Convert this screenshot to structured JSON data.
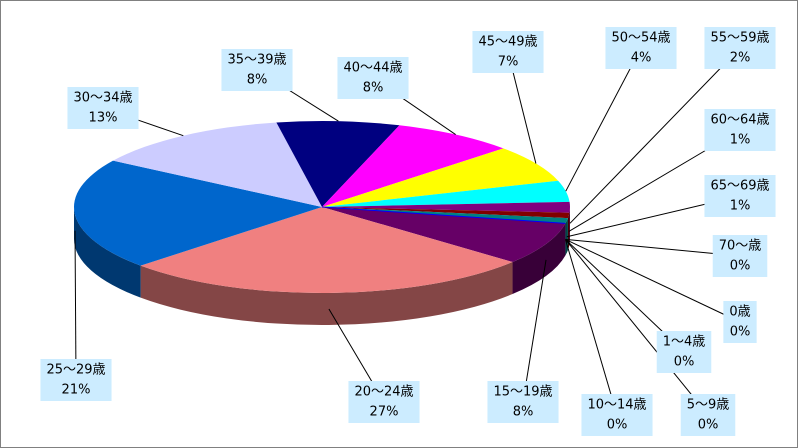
{
  "chart_data": {
    "type": "pie3d",
    "categories": [
      "0歳",
      "1〜4歳",
      "5〜9歳",
      "10〜14歳",
      "15〜19歳",
      "20〜24歳",
      "25〜29歳",
      "30〜34歳",
      "35〜39歳",
      "40〜44歳",
      "45〜49歳",
      "50〜54歳",
      "55〜59歳",
      "60〜64歳",
      "65〜69歳",
      "70〜歳"
    ],
    "values": [
      0,
      0,
      0,
      0,
      8,
      27,
      21,
      13,
      8,
      8,
      7,
      4,
      2,
      1,
      1,
      0
    ],
    "value_labels": [
      "0%",
      "0%",
      "0%",
      "0%",
      "8%",
      "27%",
      "21%",
      "13%",
      "8%",
      "8%",
      "7%",
      "4%",
      "2%",
      "1%",
      "1%",
      "0%"
    ],
    "colors": [
      "#993366",
      "#ffcc00",
      "#339966",
      "#ff6600",
      "#660066",
      "#f08080",
      "#0066cc",
      "#ccccff",
      "#000080",
      "#ff00ff",
      "#ffff00",
      "#00ffff",
      "#800080",
      "#800000",
      "#008080",
      "#0000ff"
    ]
  }
}
